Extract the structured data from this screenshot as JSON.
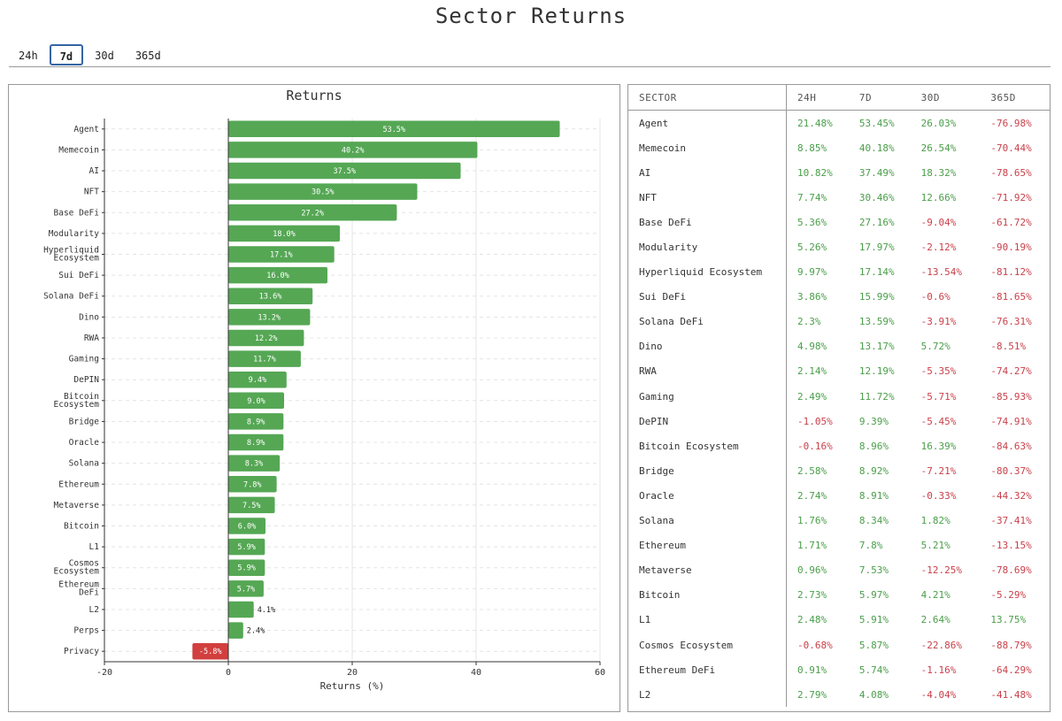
{
  "title": "Sector Returns",
  "tabs": [
    {
      "label": "24h",
      "active": false
    },
    {
      "label": "7d",
      "active": true
    },
    {
      "label": "30d",
      "active": false
    },
    {
      "label": "365d",
      "active": false
    }
  ],
  "colors": {
    "positive": "#55a754",
    "negative": "#d23f3f",
    "positive_text": "#4a9e4a",
    "negative_text": "#c9404a"
  },
  "chart_data": {
    "type": "bar",
    "orientation": "horizontal",
    "title": "Returns",
    "xlabel": "Returns (%)",
    "ylabel": "",
    "xlim": [
      -20,
      60
    ],
    "xticks": [
      -20,
      0,
      20,
      40,
      60
    ],
    "grid": true,
    "categories": [
      "Agent",
      "Memecoin",
      "AI",
      "NFT",
      "Base DeFi",
      "Modularity",
      "Hyperliquid Ecosystem",
      "Sui DeFi",
      "Solana DeFi",
      "Dino",
      "RWA",
      "Gaming",
      "DePIN",
      "Bitcoin Ecosystem",
      "Bridge",
      "Oracle",
      "Solana",
      "Ethereum",
      "Metaverse",
      "Bitcoin",
      "L1",
      "Cosmos Ecosystem",
      "Ethereum DeFi",
      "L2",
      "Perps",
      "Privacy"
    ],
    "values": [
      53.5,
      40.2,
      37.5,
      30.5,
      27.2,
      18.0,
      17.1,
      16.0,
      13.6,
      13.2,
      12.2,
      11.7,
      9.4,
      9.0,
      8.9,
      8.9,
      8.3,
      7.8,
      7.5,
      6.0,
      5.9,
      5.9,
      5.7,
      4.1,
      2.4,
      -5.8
    ],
    "labels": [
      "53.5%",
      "40.2%",
      "37.5%",
      "30.5%",
      "27.2%",
      "18.0%",
      "17.1%",
      "16.0%",
      "13.6%",
      "13.2%",
      "12.2%",
      "11.7%",
      "9.4%",
      "9.0%",
      "8.9%",
      "8.9%",
      "8.3%",
      "7.8%",
      "7.5%",
      "6.0%",
      "5.9%",
      "5.9%",
      "5.7%",
      "4.1%",
      "2.4%",
      "-5.8%"
    ]
  },
  "table": {
    "headers": [
      "SECTOR",
      "24H",
      "7D",
      "30D",
      "365D"
    ],
    "rows": [
      [
        "Agent",
        "21.48%",
        "53.45%",
        "26.03%",
        "-76.98%"
      ],
      [
        "Memecoin",
        "8.85%",
        "40.18%",
        "26.54%",
        "-70.44%"
      ],
      [
        "AI",
        "10.82%",
        "37.49%",
        "18.32%",
        "-78.65%"
      ],
      [
        "NFT",
        "7.74%",
        "30.46%",
        "12.66%",
        "-71.92%"
      ],
      [
        "Base DeFi",
        "5.36%",
        "27.16%",
        "-9.04%",
        "-61.72%"
      ],
      [
        "Modularity",
        "5.26%",
        "17.97%",
        "-2.12%",
        "-90.19%"
      ],
      [
        "Hyperliquid Ecosystem",
        "9.97%",
        "17.14%",
        "-13.54%",
        "-81.12%"
      ],
      [
        "Sui DeFi",
        "3.86%",
        "15.99%",
        "-0.6%",
        "-81.65%"
      ],
      [
        "Solana DeFi",
        "2.3%",
        "13.59%",
        "-3.91%",
        "-76.31%"
      ],
      [
        "Dino",
        "4.98%",
        "13.17%",
        "5.72%",
        "-8.51%"
      ],
      [
        "RWA",
        "2.14%",
        "12.19%",
        "-5.35%",
        "-74.27%"
      ],
      [
        "Gaming",
        "2.49%",
        "11.72%",
        "-5.71%",
        "-85.93%"
      ],
      [
        "DePIN",
        "-1.05%",
        "9.39%",
        "-5.45%",
        "-74.91%"
      ],
      [
        "Bitcoin Ecosystem",
        "-0.16%",
        "8.96%",
        "16.39%",
        "-84.63%"
      ],
      [
        "Bridge",
        "2.58%",
        "8.92%",
        "-7.21%",
        "-80.37%"
      ],
      [
        "Oracle",
        "2.74%",
        "8.91%",
        "-0.33%",
        "-44.32%"
      ],
      [
        "Solana",
        "1.76%",
        "8.34%",
        "1.82%",
        "-37.41%"
      ],
      [
        "Ethereum",
        "1.71%",
        "7.8%",
        "5.21%",
        "-13.15%"
      ],
      [
        "Metaverse",
        "0.96%",
        "7.53%",
        "-12.25%",
        "-78.69%"
      ],
      [
        "Bitcoin",
        "2.73%",
        "5.97%",
        "4.21%",
        "-5.29%"
      ],
      [
        "L1",
        "2.48%",
        "5.91%",
        "2.64%",
        "13.75%"
      ],
      [
        "Cosmos Ecosystem",
        "-0.68%",
        "5.87%",
        "-22.86%",
        "-88.79%"
      ],
      [
        "Ethereum DeFi",
        "0.91%",
        "5.74%",
        "-1.16%",
        "-64.29%"
      ],
      [
        "L2",
        "2.79%",
        "4.08%",
        "-4.04%",
        "-41.48%"
      ]
    ]
  }
}
